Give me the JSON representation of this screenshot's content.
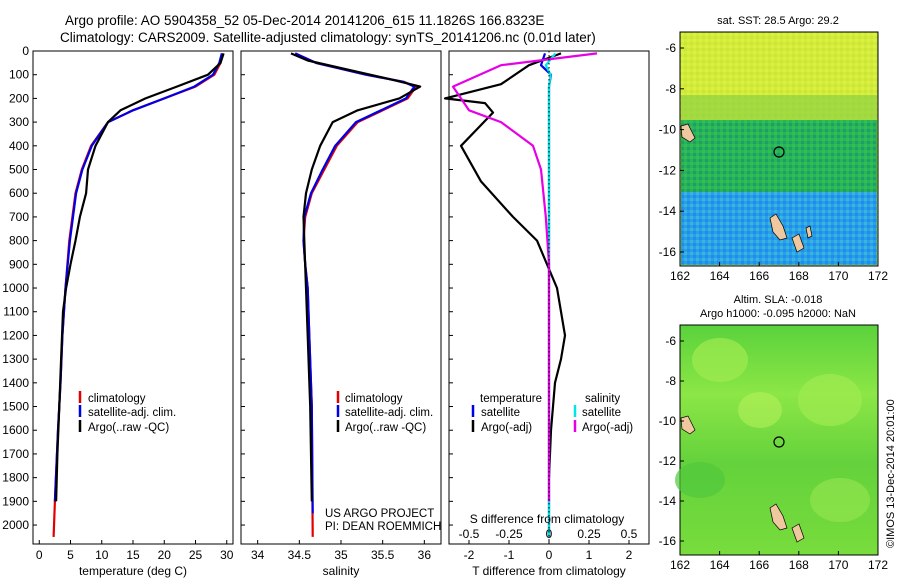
{
  "header": {
    "line1": "Argo profile: AO 5904358_52 05-Dec-2014 20141206_615 11.1826S 166.8323E",
    "line2": "Climatology: CARS2009. Satellite-adjusted climatology: synTS_20141206.nc (0.01d later)"
  },
  "colors": {
    "climatology": "#e00000",
    "satellite": "#0000e6",
    "argo": "#000000",
    "satellite_salinity": "#00e6e6",
    "argo_salinity": "#e600e6"
  },
  "chart_data": [
    {
      "type": "line",
      "panel": "temperature",
      "xlabel": "temperature (deg C)",
      "ylabel": "",
      "xlim": [
        -1,
        31
      ],
      "ylim": [
        2080,
        0
      ],
      "xticks": [
        "0",
        "5",
        "10",
        "15",
        "20",
        "25",
        "30"
      ],
      "yticks": [
        "0",
        "100",
        "200",
        "300",
        "400",
        "500",
        "600",
        "700",
        "800",
        "900",
        "1000",
        "1100",
        "1200",
        "1300",
        "1400",
        "1500",
        "1600",
        "1700",
        "1800",
        "1900",
        "2000"
      ],
      "legend": [
        "climatology",
        "satellite-adj. clim.",
        "Argo(..raw -QC)"
      ],
      "series": [
        {
          "name": "climatology",
          "x": [
            29.3,
            29,
            28,
            25,
            20,
            15,
            11,
            8.3,
            6.8,
            5.8,
            4.8,
            4.2,
            3.7,
            3.4,
            3.0,
            2.5,
            2.3
          ],
          "y": [
            10,
            50,
            100,
            150,
            200,
            250,
            300,
            400,
            500,
            600,
            800,
            1000,
            1200,
            1400,
            1600,
            1900,
            2050
          ]
        },
        {
          "name": "satellite-adj. clim.",
          "x": [
            29.2,
            28.8,
            27.8,
            24.8,
            20,
            15,
            11,
            8.4,
            6.9,
            5.9,
            4.9,
            4.2,
            3.7,
            3.4,
            3.0,
            2.5
          ],
          "y": [
            10,
            50,
            100,
            150,
            200,
            250,
            300,
            400,
            500,
            600,
            800,
            1000,
            1200,
            1400,
            1600,
            1900
          ]
        },
        {
          "name": "Argo(..raw -QC)",
          "x": [
            29.5,
            29,
            27,
            22,
            17,
            13,
            11,
            9,
            7.8,
            7.5,
            6.5,
            5.8,
            5.0,
            4.3,
            3.8,
            3.5,
            3.2,
            2.9,
            2.7
          ],
          "y": [
            10,
            50,
            100,
            150,
            200,
            250,
            300,
            400,
            500,
            600,
            700,
            800,
            900,
            1000,
            1100,
            1300,
            1500,
            1700,
            1900
          ]
        }
      ]
    },
    {
      "type": "line",
      "panel": "salinity",
      "xlabel": "salinity",
      "xlim": [
        33.8,
        36.2
      ],
      "ylim": [
        2080,
        0
      ],
      "xticks": [
        "34",
        "34.5",
        "35",
        "35.5",
        "36"
      ],
      "legend": [
        "climatology",
        "satellite-adj. clim.",
        "Argo(..raw -QC)"
      ],
      "series": [
        {
          "name": "climatology",
          "x": [
            34.45,
            34.7,
            35.3,
            35.75,
            35.9,
            35.8,
            35.5,
            35.2,
            34.95,
            34.8,
            34.65,
            34.57,
            34.55,
            34.57,
            34.6,
            34.62,
            34.65,
            34.66
          ],
          "y": [
            10,
            50,
            100,
            130,
            150,
            200,
            250,
            300,
            400,
            500,
            600,
            700,
            800,
            900,
            1000,
            1200,
            1500,
            2050
          ]
        },
        {
          "name": "satellite-adj. clim.",
          "x": [
            34.45,
            34.7,
            35.3,
            35.75,
            35.88,
            35.78,
            35.48,
            35.18,
            34.93,
            34.78,
            34.64,
            34.56,
            34.55,
            34.57,
            34.6,
            34.62,
            34.65,
            34.66
          ],
          "y": [
            10,
            50,
            100,
            130,
            150,
            200,
            250,
            300,
            400,
            500,
            600,
            700,
            800,
            900,
            1000,
            1200,
            1500,
            1950
          ]
        },
        {
          "name": "Argo(..raw -QC)",
          "x": [
            34.4,
            34.6,
            35.1,
            35.6,
            35.95,
            35.7,
            35.2,
            34.9,
            34.75,
            34.65,
            34.58,
            34.55,
            34.56,
            34.58,
            34.6,
            34.63,
            34.65
          ],
          "y": [
            10,
            40,
            80,
            120,
            150,
            200,
            250,
            300,
            400,
            500,
            600,
            700,
            800,
            1000,
            1200,
            1500,
            1900
          ]
        }
      ]
    },
    {
      "type": "line",
      "panel": "difference",
      "xlabel": "T difference from climatology",
      "xlabel_top": "S difference from climatology",
      "xlim": [
        -2.5,
        2.5
      ],
      "ylim": [
        2080,
        0
      ],
      "xticks": [
        "-2",
        "-1",
        "0",
        "1",
        "2"
      ],
      "xticks_top": [
        "-0.5",
        "-0.25",
        "0",
        "0.25",
        "0.5"
      ],
      "legend_headers": [
        "temperature",
        "salinity"
      ],
      "legend": [
        "satellite",
        "Argo(-adj)",
        "satellite",
        "Argo(-adj)"
      ],
      "series": [
        {
          "name": "temperature satellite",
          "x": [
            -0.1,
            -0.2,
            0.05,
            0,
            0,
            0,
            0,
            0,
            0
          ],
          "y": [
            10,
            60,
            100,
            150,
            300,
            600,
            1000,
            1500,
            2050
          ]
        },
        {
          "name": "temperature Argo(-adj)",
          "x": [
            0.3,
            -0.5,
            -1.2,
            -2.6,
            -1.6,
            -1.4,
            -2.2,
            -1.7,
            -0.9,
            -0.3,
            0.2,
            0.3,
            0.4,
            0.3,
            0.15,
            0.05,
            0.0
          ],
          "y": [
            10,
            60,
            140,
            200,
            220,
            260,
            400,
            550,
            700,
            800,
            1000,
            1100,
            1200,
            1300,
            1400,
            1600,
            1800
          ]
        },
        {
          "name": "salinity satellite",
          "x": [
            0.04,
            -0.02,
            0.01,
            0,
            0,
            0,
            0,
            0
          ],
          "y": [
            10,
            60,
            100,
            150,
            300,
            700,
            1200,
            2050
          ]
        },
        {
          "name": "salinity Argo(-adj)",
          "x": [
            0.3,
            -0.3,
            -0.6,
            -0.5,
            -0.3,
            -0.1,
            -0.05,
            -0.02,
            0,
            0,
            0,
            0
          ],
          "y": [
            10,
            60,
            150,
            250,
            300,
            400,
            500,
            700,
            900,
            1200,
            1600,
            1900
          ]
        }
      ]
    }
  ],
  "annotations": {
    "project": "US ARGO PROJECT",
    "pi": "PI: DEAN ROEMMICH"
  },
  "maps": [
    {
      "name": "sst-map",
      "title": "sat. SST: 28.5 Argo: 29.2",
      "xticks": [
        "162",
        "164",
        "166",
        "168",
        "170",
        "172"
      ],
      "yticks": [
        "-6",
        "-8",
        "-10",
        "-12",
        "-14",
        "-16"
      ]
    },
    {
      "name": "sla-map",
      "title_line1": "Altim. SLA: -0.018",
      "title_line2": "Argo h1000: -0.095 h2000: NaN",
      "xticks": [
        "162",
        "164",
        "166",
        "168",
        "170",
        "172"
      ],
      "yticks": [
        "-6",
        "-8",
        "-10",
        "-12",
        "-14",
        "-16"
      ]
    }
  ],
  "footer": {
    "credit": "©IMOS 13-Dec-2014 20:01:00"
  }
}
